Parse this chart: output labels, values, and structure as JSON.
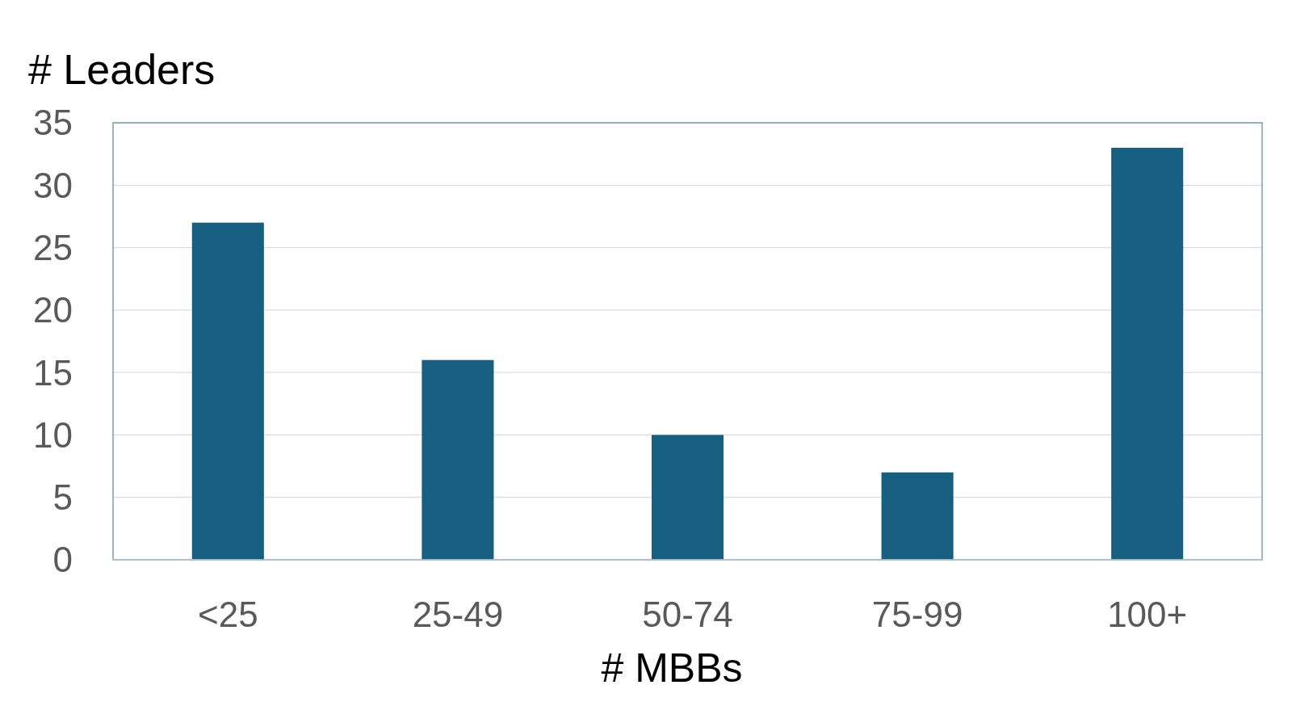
{
  "chart_data": {
    "type": "bar",
    "ylabel": "# Leaders",
    "xlabel": "# MBBs",
    "categories": [
      "<25",
      "25-49",
      "50-74",
      "75-99",
      "100+"
    ],
    "values": [
      27,
      16,
      10,
      7,
      33
    ],
    "color": "#175f80",
    "ylim": [
      0,
      35
    ],
    "yticks": [
      0,
      5,
      10,
      15,
      20,
      25,
      30,
      35
    ],
    "grid": "y"
  }
}
